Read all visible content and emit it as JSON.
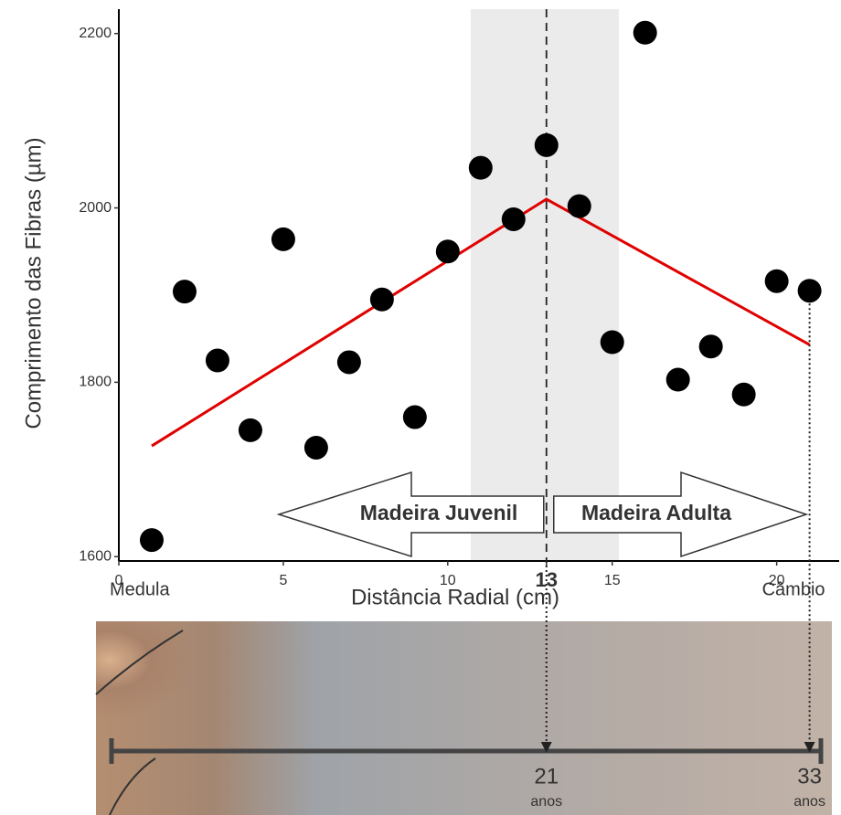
{
  "chart_data": {
    "type": "scatter",
    "y_label": "Comprimento das Fibras (µm)",
    "x_label": "Distância Radial (cm)",
    "x": [
      1,
      2,
      3,
      4,
      5,
      6,
      7,
      8,
      9,
      10,
      11,
      12,
      13,
      14,
      15,
      16,
      17,
      18,
      19,
      20,
      21
    ],
    "values": [
      1619,
      1904,
      1825,
      1745,
      1964,
      1725,
      1823,
      1895,
      1760,
      1950,
      2046,
      1987,
      2072,
      2002,
      1846,
      2201,
      1803,
      1841,
      1786,
      1916,
      1905
    ],
    "color": "#000000",
    "fit": {
      "x": [
        1,
        13,
        21
      ],
      "values": [
        1727,
        2010,
        1843
      ],
      "color": "#e00000"
    },
    "band": [
      10.7,
      15.2
    ],
    "vline": 13,
    "xlim": [
      0,
      21.9
    ],
    "ylim": [
      1595,
      2228
    ],
    "xticks": [
      0,
      5,
      10,
      13,
      15,
      20
    ],
    "yticks": [
      1600,
      1800,
      2000,
      2200
    ],
    "annotations": {
      "start": "Medula",
      "end": "Câmbio",
      "juvenile": "Madeira Juvenil",
      "adult": "Madeira Adulta",
      "age_mid": "21",
      "age_mid_unit": "anos",
      "age_end": "33",
      "age_end_unit": "anos"
    }
  }
}
